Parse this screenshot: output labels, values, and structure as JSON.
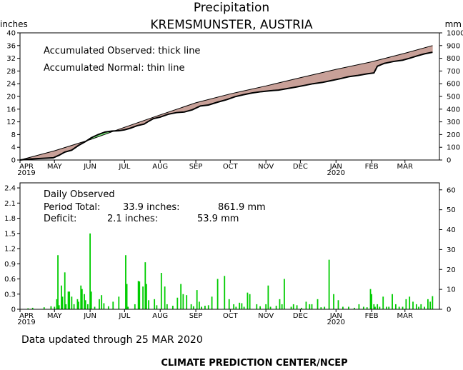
{
  "header": {
    "title": "Precipitation",
    "subtitle": "KREMSMUNSTER, AUSTRIA"
  },
  "colors": {
    "surplus": "#88ff88",
    "deficit": "#c8a098",
    "bar": "#00cc00",
    "line": "#000000"
  },
  "chart_data": [
    {
      "type": "area",
      "name": "accumulated",
      "ylabel_left": "inches",
      "ylabel_right": "mm",
      "ylim": [
        0,
        40
      ],
      "ylim_right": [
        0,
        1000
      ],
      "yticks_left": [
        "0",
        "4",
        "8",
        "12",
        "16",
        "20",
        "24",
        "28",
        "32",
        "36",
        "40"
      ],
      "yticks_right": [
        "0",
        "100",
        "200",
        "300",
        "400",
        "500",
        "600",
        "700",
        "800",
        "900",
        "1000"
      ],
      "x_domain": [
        "2019-04-01",
        "2020-03-31"
      ],
      "month_labels": [
        "APR",
        "MAY",
        "JUN",
        "JUL",
        "AUG",
        "SEP",
        "OCT",
        "NOV",
        "DEC",
        "JAN",
        "FEB",
        "MAR"
      ],
      "year_labels": [
        {
          "month": "APR",
          "year": "2019"
        },
        {
          "month": "JAN",
          "year": "2020"
        }
      ],
      "legend": [
        "Accumulated Observed: thick line",
        "Accumulated Normal: thin line"
      ],
      "series": [
        {
          "name": "Accumulated Observed",
          "x": [
            "2019-04-01",
            "2019-04-10",
            "2019-04-20",
            "2019-04-30",
            "2019-05-05",
            "2019-05-10",
            "2019-05-16",
            "2019-05-22",
            "2019-05-28",
            "2019-06-02",
            "2019-06-08",
            "2019-06-14",
            "2019-06-20",
            "2019-06-26",
            "2019-07-01",
            "2019-07-06",
            "2019-07-12",
            "2019-07-18",
            "2019-07-22",
            "2019-07-26",
            "2019-08-01",
            "2019-08-08",
            "2019-08-15",
            "2019-08-22",
            "2019-08-29",
            "2019-09-05",
            "2019-09-12",
            "2019-09-20",
            "2019-09-28",
            "2019-10-05",
            "2019-10-12",
            "2019-10-20",
            "2019-10-28",
            "2019-11-05",
            "2019-11-12",
            "2019-11-20",
            "2019-11-28",
            "2019-12-05",
            "2019-12-12",
            "2019-12-20",
            "2019-12-28",
            "2020-01-05",
            "2020-01-12",
            "2020-01-20",
            "2020-01-28",
            "2020-02-03",
            "2020-02-06",
            "2020-02-12",
            "2020-02-20",
            "2020-02-28",
            "2020-03-05",
            "2020-03-12",
            "2020-03-18",
            "2020-03-25"
          ],
          "values": [
            0.0,
            0.3,
            0.5,
            0.7,
            1.5,
            2.5,
            3.1,
            4.6,
            5.8,
            7.0,
            8.0,
            8.8,
            9.1,
            9.2,
            9.5,
            10.0,
            10.8,
            11.3,
            12.2,
            13.0,
            13.5,
            14.4,
            14.9,
            15.1,
            15.8,
            17.0,
            17.3,
            18.2,
            19.0,
            19.9,
            20.5,
            21.1,
            21.5,
            21.8,
            22.0,
            22.5,
            23.0,
            23.5,
            24.0,
            24.4,
            25.0,
            25.6,
            26.2,
            26.6,
            27.1,
            27.4,
            29.5,
            30.4,
            31.0,
            31.4,
            32.0,
            32.8,
            33.4,
            33.9
          ]
        },
        {
          "name": "Accumulated Normal",
          "x": [
            "2019-04-01",
            "2019-05-01",
            "2019-06-01",
            "2019-07-01",
            "2019-08-01",
            "2019-09-01",
            "2019-10-01",
            "2019-11-01",
            "2019-12-01",
            "2020-01-01",
            "2020-02-01",
            "2020-03-01",
            "2020-03-25"
          ],
          "values": [
            0.0,
            2.9,
            6.4,
            10.3,
            14.2,
            18.0,
            20.8,
            23.3,
            25.9,
            28.5,
            30.9,
            33.6,
            36.0
          ]
        }
      ]
    },
    {
      "type": "bar",
      "name": "daily",
      "ylim": [
        0,
        2.5
      ],
      "ylim_right": [
        0,
        63.5
      ],
      "yticks_left": [
        "0",
        "0.3",
        "0.6",
        "0.9",
        "1.2",
        "1.5",
        "1.8",
        "2.1",
        "2.4"
      ],
      "yticks_right": [
        "0",
        "10",
        "20",
        "30",
        "40",
        "50",
        "60"
      ],
      "x_domain": [
        "2019-04-01",
        "2020-03-31"
      ],
      "month_labels": [
        "APR",
        "MAY",
        "JUN",
        "JUL",
        "AUG",
        "SEP",
        "OCT",
        "NOV",
        "DEC",
        "JAN",
        "FEB",
        "MAR"
      ],
      "year_labels": [
        {
          "month": "APR",
          "year": "2019"
        },
        {
          "month": "JAN",
          "year": "2020"
        }
      ],
      "series": [
        {
          "name": "Daily Observed",
          "x": [
            "2019-04-08",
            "2019-04-12",
            "2019-04-22",
            "2019-04-28",
            "2019-05-01",
            "2019-05-03",
            "2019-05-04",
            "2019-05-05",
            "2019-05-07",
            "2019-05-08",
            "2019-05-10",
            "2019-05-11",
            "2019-05-13",
            "2019-05-14",
            "2019-05-16",
            "2019-05-18",
            "2019-05-21",
            "2019-05-22",
            "2019-05-24",
            "2019-05-25",
            "2019-05-27",
            "2019-05-28",
            "2019-05-30",
            "2019-06-01",
            "2019-06-02",
            "2019-06-05",
            "2019-06-09",
            "2019-06-11",
            "2019-06-13",
            "2019-06-17",
            "2019-06-21",
            "2019-06-26",
            "2019-07-02",
            "2019-07-03",
            "2019-07-04",
            "2019-07-10",
            "2019-07-13",
            "2019-07-14",
            "2019-07-17",
            "2019-07-19",
            "2019-07-20",
            "2019-07-22",
            "2019-07-27",
            "2019-07-29",
            "2019-08-02",
            "2019-08-05",
            "2019-08-07",
            "2019-08-12",
            "2019-08-16",
            "2019-08-19",
            "2019-08-21",
            "2019-08-24",
            "2019-08-28",
            "2019-08-30",
            "2019-09-02",
            "2019-09-04",
            "2019-09-06",
            "2019-09-09",
            "2019-09-12",
            "2019-09-15",
            "2019-09-20",
            "2019-09-26",
            "2019-09-30",
            "2019-10-04",
            "2019-10-06",
            "2019-10-09",
            "2019-10-11",
            "2019-10-13",
            "2019-10-16",
            "2019-10-18",
            "2019-10-24",
            "2019-10-27",
            "2019-11-01",
            "2019-11-03",
            "2019-11-05",
            "2019-11-10",
            "2019-11-13",
            "2019-11-15",
            "2019-11-17",
            "2019-11-23",
            "2019-11-25",
            "2019-11-28",
            "2019-12-02",
            "2019-12-06",
            "2019-12-09",
            "2019-12-11",
            "2019-12-16",
            "2019-12-19",
            "2019-12-22",
            "2019-12-26",
            "2019-12-30",
            "2020-01-03",
            "2020-01-07",
            "2020-01-12",
            "2020-01-17",
            "2020-01-21",
            "2020-01-25",
            "2020-01-28",
            "2020-01-31",
            "2020-02-01",
            "2020-02-03",
            "2020-02-04",
            "2020-02-06",
            "2020-02-08",
            "2020-02-11",
            "2020-02-14",
            "2020-02-16",
            "2020-02-19",
            "2020-02-22",
            "2020-02-25",
            "2020-02-28",
            "2020-03-02",
            "2020-03-05",
            "2020-03-08",
            "2020-03-11",
            "2020-03-13",
            "2020-03-15",
            "2020-03-18",
            "2020-03-21",
            "2020-03-23",
            "2020-03-25"
          ],
          "values": [
            0.02,
            0.03,
            0.04,
            0.06,
            0.05,
            0.2,
            1.07,
            0.08,
            0.47,
            0.25,
            0.73,
            0.1,
            0.35,
            0.35,
            0.25,
            0.1,
            0.2,
            0.15,
            0.47,
            0.4,
            0.3,
            0.18,
            0.1,
            1.5,
            0.35,
            0.05,
            0.2,
            0.28,
            0.12,
            0.06,
            0.15,
            0.25,
            1.07,
            0.5,
            0.05,
            0.1,
            0.56,
            0.55,
            0.45,
            0.93,
            0.5,
            0.18,
            0.2,
            0.08,
            0.72,
            0.45,
            0.1,
            0.07,
            0.23,
            0.5,
            0.3,
            0.28,
            0.1,
            0.06,
            0.38,
            0.15,
            0.05,
            0.07,
            0.08,
            0.25,
            0.6,
            0.66,
            0.2,
            0.1,
            0.05,
            0.13,
            0.12,
            0.05,
            0.33,
            0.3,
            0.1,
            0.06,
            0.1,
            0.47,
            0.05,
            0.07,
            0.2,
            0.1,
            0.6,
            0.05,
            0.1,
            0.08,
            0.03,
            0.15,
            0.1,
            0.1,
            0.2,
            0.04,
            0.05,
            0.98,
            0.3,
            0.18,
            0.05,
            0.05,
            0.03,
            0.1,
            0.05,
            0.04,
            0.4,
            0.3,
            0.1,
            0.05,
            0.1,
            0.05,
            0.25,
            0.05,
            0.05,
            0.3,
            0.1,
            0.05,
            0.05,
            0.2,
            0.25,
            0.15,
            0.1,
            0.05,
            0.1,
            0.05,
            0.2,
            0.15,
            0.26
          ]
        }
      ]
    }
  ],
  "stats": {
    "heading": "Daily Observed",
    "total_label": "Period Total:",
    "total_inches": "33.9 inches:",
    "total_mm": "861.9 mm",
    "deficit_label": "Deficit:",
    "deficit_inches": "2.1 inches:",
    "deficit_mm": "53.9 mm"
  },
  "footer": {
    "updated": "Data updated through 25 MAR 2020",
    "credit": "CLIMATE PREDICTION CENTER/NCEP"
  }
}
